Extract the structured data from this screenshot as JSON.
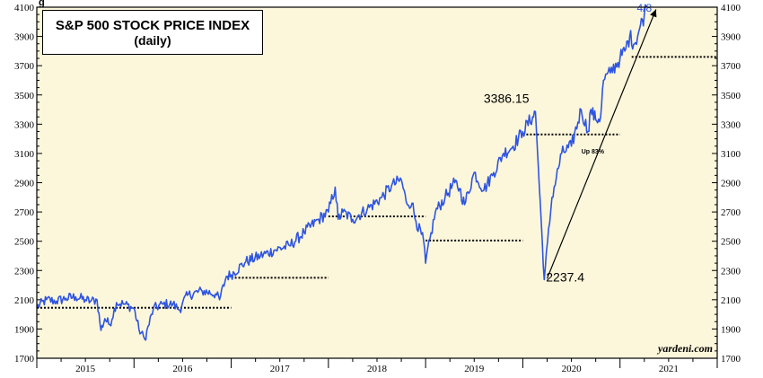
{
  "chart_data": {
    "type": "line",
    "title": "S&P 500 STOCK PRICE INDEX",
    "subtitle": "(daily)",
    "source": "yardeni.com",
    "top_left_fragment": "g",
    "ylim": [
      1700,
      4100
    ],
    "y_ticks": [
      1700,
      1900,
      2100,
      2300,
      2500,
      2700,
      2900,
      3100,
      3300,
      3500,
      3700,
      3900,
      4100
    ],
    "x_categories": [
      "2015",
      "2016",
      "2017",
      "2018",
      "2019",
      "2020",
      "2021"
    ],
    "series": [
      {
        "color": "#2f55e0",
        "x": [
          2015.0,
          2015.1,
          2015.2,
          2015.3,
          2015.4,
          2015.5,
          2015.55,
          2015.62,
          2015.66,
          2015.7,
          2015.75,
          2015.82,
          2015.9,
          2016.0,
          2016.05,
          2016.11,
          2016.2,
          2016.3,
          2016.4,
          2016.47,
          2016.5,
          2016.55,
          2016.7,
          2016.84,
          2016.88,
          2016.95,
          2017.0,
          2017.15,
          2017.3,
          2017.45,
          2017.6,
          2017.75,
          2017.9,
          2018.0,
          2018.07,
          2018.1,
          2018.15,
          2018.25,
          2018.4,
          2018.55,
          2018.65,
          2018.75,
          2018.8,
          2018.86,
          2018.9,
          2018.98,
          2019.0,
          2019.1,
          2019.2,
          2019.3,
          2019.35,
          2019.4,
          2019.5,
          2019.6,
          2019.7,
          2019.8,
          2019.9,
          2020.0,
          2020.1,
          2020.13,
          2020.16,
          2020.2,
          2020.22,
          2020.3,
          2020.4,
          2020.5,
          2020.6,
          2020.67,
          2020.7,
          2020.75,
          2020.8,
          2020.83,
          2020.9,
          2021.0,
          2021.05,
          2021.1,
          2021.15,
          2021.2,
          2021.25,
          2021.27
        ],
        "y": [
          2050,
          2100,
          2090,
          2110,
          2120,
          2100,
          2090,
          2100,
          1890,
          1970,
          1930,
          2080,
          2070,
          2040,
          1900,
          1830,
          2040,
          2070,
          2070,
          2030,
          2080,
          2130,
          2160,
          2140,
          2100,
          2260,
          2270,
          2360,
          2400,
          2440,
          2470,
          2560,
          2650,
          2700,
          2870,
          2650,
          2700,
          2650,
          2720,
          2800,
          2880,
          2920,
          2770,
          2760,
          2640,
          2500,
          2350,
          2700,
          2800,
          2900,
          2860,
          2750,
          2970,
          2850,
          2970,
          3100,
          3150,
          3250,
          3350,
          3386.15,
          3000,
          2500,
          2237.4,
          2800,
          3100,
          3150,
          3400,
          3250,
          3400,
          3330,
          3350,
          3600,
          3650,
          3750,
          3800,
          3900,
          3850,
          3950,
          4050,
          4100
        ]
      }
    ],
    "reference_lines": [
      {
        "x_start": 2015.0,
        "x_end": 2017.0,
        "y": 2045
      },
      {
        "x_start": 2017.0,
        "x_end": 2018.0,
        "y": 2250
      },
      {
        "x_start": 2018.0,
        "x_end": 2019.0,
        "y": 2670
      },
      {
        "x_start": 2019.0,
        "x_end": 2020.0,
        "y": 2505
      },
      {
        "x_start": 2020.0,
        "x_end": 2021.0,
        "y": 3230
      },
      {
        "x_start": 2021.12,
        "x_end": 2022.0,
        "y": 3760
      }
    ],
    "annotations": [
      {
        "text": "3386.15",
        "x": 2020.13,
        "y": 3386.15
      },
      {
        "text": "2237.4",
        "x": 2020.22,
        "y": 2237.4
      },
      {
        "text": "Up 83%",
        "x": 2020.72,
        "y": 3100
      },
      {
        "text": "4/8",
        "x": 2021.25,
        "y": 4100
      }
    ],
    "arrow": {
      "x_start": 2020.25,
      "y_start": 2245,
      "x_end": 2021.37,
      "y_end": 4085
    }
  }
}
